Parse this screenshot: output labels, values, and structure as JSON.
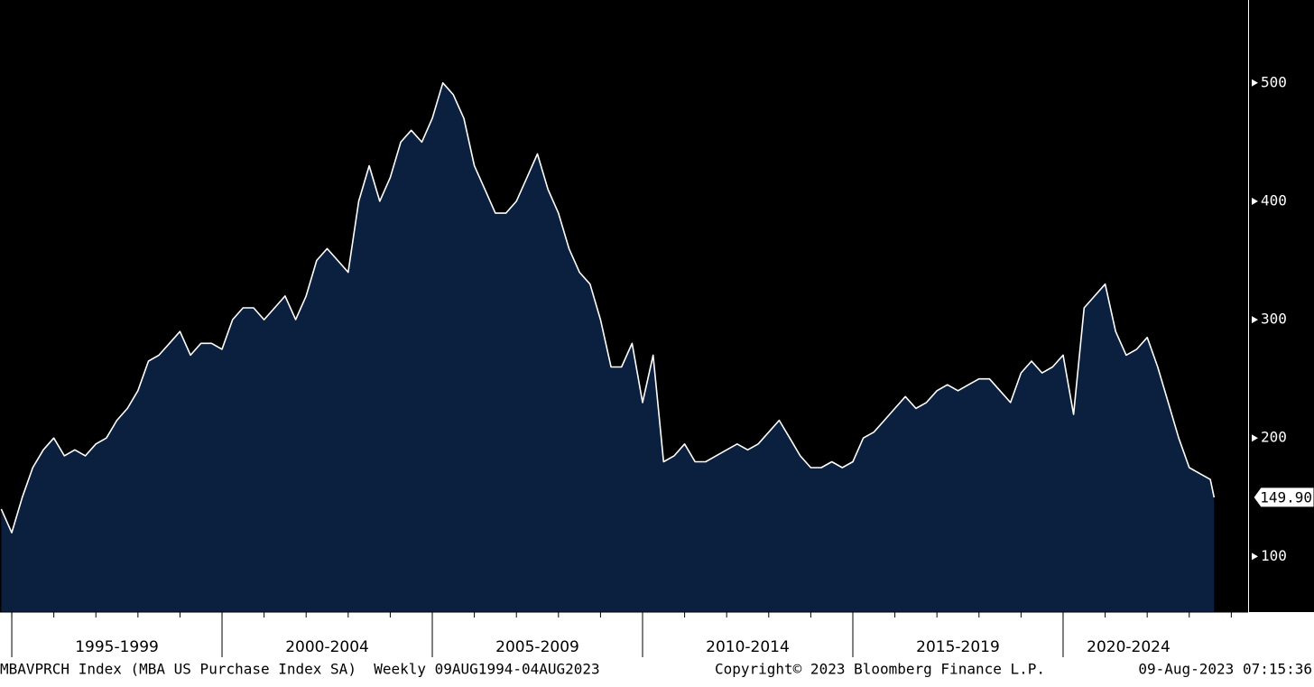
{
  "chart_data": {
    "type": "area",
    "series": [
      {
        "color": "#0b1f3f",
        "line_color": "#ffffff",
        "x": [
          1994.75,
          1995.0,
          1995.25,
          1995.5,
          1995.75,
          1996.0,
          1996.25,
          1996.5,
          1996.75,
          1997.0,
          1997.25,
          1997.5,
          1997.75,
          1998.0,
          1998.25,
          1998.5,
          1998.75,
          1999.0,
          1999.25,
          1999.5,
          1999.75,
          2000.0,
          2000.25,
          2000.5,
          2000.75,
          2001.0,
          2001.25,
          2001.5,
          2001.75,
          2002.0,
          2002.25,
          2002.5,
          2002.75,
          2003.0,
          2003.25,
          2003.5,
          2003.75,
          2004.0,
          2004.25,
          2004.5,
          2004.75,
          2005.0,
          2005.25,
          2005.5,
          2005.75,
          2006.0,
          2006.25,
          2006.5,
          2006.75,
          2007.0,
          2007.25,
          2007.5,
          2007.75,
          2008.0,
          2008.25,
          2008.5,
          2008.75,
          2009.0,
          2009.25,
          2009.5,
          2009.75,
          2010.0,
          2010.25,
          2010.5,
          2010.75,
          2011.0,
          2011.25,
          2011.5,
          2011.75,
          2012.0,
          2012.25,
          2012.5,
          2012.75,
          2013.0,
          2013.25,
          2013.5,
          2013.75,
          2014.0,
          2014.25,
          2014.5,
          2014.75,
          2015.0,
          2015.25,
          2015.5,
          2015.75,
          2016.0,
          2016.25,
          2016.5,
          2016.75,
          2017.0,
          2017.25,
          2017.5,
          2017.75,
          2018.0,
          2018.25,
          2018.5,
          2018.75,
          2019.0,
          2019.25,
          2019.5,
          2019.75,
          2020.0,
          2020.25,
          2020.5,
          2020.75,
          2021.0,
          2021.25,
          2021.5,
          2021.75,
          2022.0,
          2022.25,
          2022.5,
          2022.75,
          2023.0,
          2023.25,
          2023.5,
          2023.59
        ],
        "values": [
          140,
          120,
          150,
          175,
          190,
          200,
          185,
          190,
          185,
          195,
          200,
          215,
          225,
          240,
          265,
          270,
          280,
          290,
          270,
          280,
          280,
          275,
          300,
          310,
          310,
          300,
          310,
          320,
          300,
          320,
          350,
          360,
          350,
          340,
          400,
          430,
          400,
          420,
          450,
          460,
          450,
          470,
          500,
          490,
          470,
          430,
          410,
          390,
          390,
          400,
          420,
          440,
          410,
          390,
          360,
          340,
          330,
          300,
          260,
          260,
          280,
          230,
          270,
          180,
          185,
          195,
          180,
          180,
          185,
          190,
          195,
          190,
          195,
          205,
          215,
          200,
          185,
          175,
          175,
          180,
          175,
          180,
          200,
          205,
          215,
          225,
          235,
          225,
          230,
          240,
          245,
          240,
          245,
          250,
          250,
          240,
          230,
          255,
          265,
          255,
          260,
          270,
          220,
          310,
          320,
          330,
          290,
          270,
          275,
          285,
          260,
          230,
          200,
          175,
          170,
          165,
          149.9
        ]
      }
    ],
    "end_label": "149.90",
    "xlim": [
      1994.72,
      2024.4
    ],
    "xticks": [
      1995,
      1996,
      1997,
      1998,
      1999,
      2000,
      2001,
      2002,
      2003,
      2004,
      2005,
      2006,
      2007,
      2008,
      2009,
      2010,
      2011,
      2012,
      2013,
      2014,
      2015,
      2016,
      2017,
      2018,
      2019,
      2020,
      2021,
      2022,
      2023,
      2024
    ],
    "xbands": [
      {
        "label": "1995-1999",
        "from": 1995,
        "to": 2000
      },
      {
        "label": "2000-2004",
        "from": 2000,
        "to": 2005
      },
      {
        "label": "2005-2009",
        "from": 2005,
        "to": 2010
      },
      {
        "label": "2010-2014",
        "from": 2010,
        "to": 2015
      },
      {
        "label": "2015-2019",
        "from": 2015,
        "to": 2020
      },
      {
        "label": "2020-2024",
        "from": 2020,
        "to": 2025
      }
    ],
    "ylim": [
      53,
      570
    ],
    "yticks": [
      100,
      200,
      300,
      400,
      500
    ],
    "footer": {
      "left": "MBAVPRCH Index (MBA US Purchase Index SA)  Weekly 09AUG1994-04AUG2023",
      "middle": "Copyright© 2023 Bloomberg Finance L.P.",
      "right": "09-Aug-2023 07:15:36"
    }
  }
}
